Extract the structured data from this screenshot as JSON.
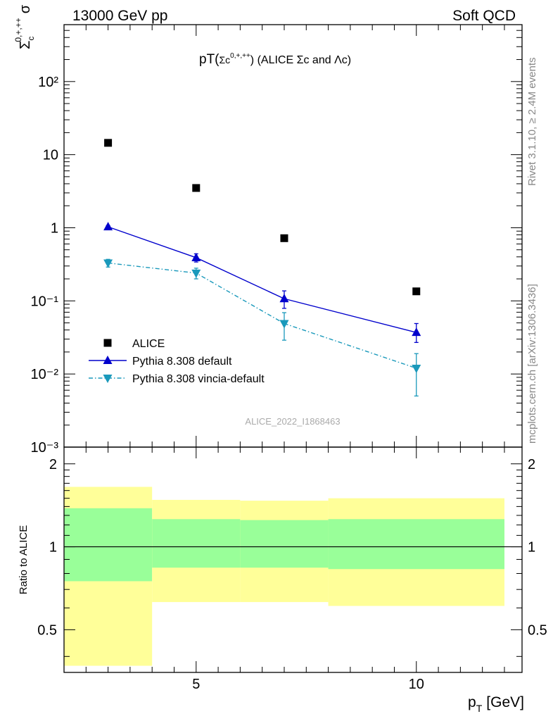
{
  "header": {
    "left": "13000 GeV pp",
    "right": "Soft QCD"
  },
  "side_labels": {
    "rivet": "Rivet 3.1.10, ≥ 2.4M events",
    "mcplots": "mcplots.cern.ch [arXiv:1306.3436]"
  },
  "chart_data": [
    {
      "type": "scatter",
      "title": "pT(Σc⁰ʸ⁺ʸ⁺⁺) (ALICE Σc and Λc)",
      "title_main": "pT(",
      "title_sub": "Σc",
      "title_sup": "0,+,++",
      "title_rest": ") (ALICE Σc and Λc)",
      "ylabel": "Σc 0,+,++ σ",
      "ylabel_base": "Σ",
      "ylabel_sub": "c",
      "ylabel_sup": "0,+,++",
      "ylabel_tail": "σ",
      "yscale": "log",
      "ylim": [
        0.001,
        600
      ],
      "xlim": [
        2,
        12.4
      ],
      "ytick_labels": [
        "10⁻³",
        "10⁻²",
        "10⁻¹",
        "1",
        "10",
        "10²"
      ],
      "watermark": "ALICE_2022_I1868463",
      "legend_position": "lower-left",
      "series": [
        {
          "name": "ALICE",
          "color": "#000000",
          "marker": "square",
          "line": "none",
          "x": [
            3,
            5,
            7,
            10
          ],
          "y": [
            14.5,
            3.5,
            0.72,
            0.135
          ]
        },
        {
          "name": "Pythia 8.308 default",
          "color": "#0000cc",
          "marker": "triangle-up",
          "line": "solid",
          "x": [
            3,
            5,
            7,
            10
          ],
          "y": [
            1.03,
            0.39,
            0.107,
            0.037
          ],
          "err_low": [
            0.04,
            0.05,
            0.028,
            0.01
          ],
          "err_high": [
            0.04,
            0.05,
            0.03,
            0.012
          ]
        },
        {
          "name": "Pythia 8.308 vincia-default",
          "color": "#1a99bb",
          "marker": "triangle-down",
          "line": "dashdot",
          "x": [
            3,
            5,
            7,
            10
          ],
          "y": [
            0.33,
            0.24,
            0.049,
            0.012
          ],
          "err_low": [
            0.04,
            0.04,
            0.02,
            0.007
          ],
          "err_high": [
            0.04,
            0.04,
            0.02,
            0.007
          ]
        }
      ]
    },
    {
      "type": "area",
      "ylabel": "Ratio to ALICE",
      "xlabel": "p_T [GeV]",
      "xlabel_main": "p",
      "xlabel_sub": "T",
      "xlabel_tail": "[GeV]",
      "xlim": [
        2,
        12.4
      ],
      "ylim": [
        0.35,
        2.3
      ],
      "xticks": [
        5,
        10
      ],
      "yticks": [
        0.5,
        1,
        2
      ],
      "reference_line": 1,
      "bands": [
        {
          "x_low": 2,
          "x_high": 4,
          "inner_low": 0.75,
          "inner_high": 1.38,
          "outer_low": 0.37,
          "outer_high": 1.65
        },
        {
          "x_low": 4,
          "x_high": 6,
          "inner_low": 0.84,
          "inner_high": 1.26,
          "outer_low": 0.63,
          "outer_high": 1.48
        },
        {
          "x_low": 6,
          "x_high": 8,
          "inner_low": 0.84,
          "inner_high": 1.25,
          "outer_low": 0.63,
          "outer_high": 1.47
        },
        {
          "x_low": 8,
          "x_high": 12,
          "inner_low": 0.83,
          "inner_high": 1.26,
          "outer_low": 0.61,
          "outer_high": 1.5
        }
      ],
      "inner_color": "#99ff99",
      "outer_color": "#ffff99"
    }
  ]
}
